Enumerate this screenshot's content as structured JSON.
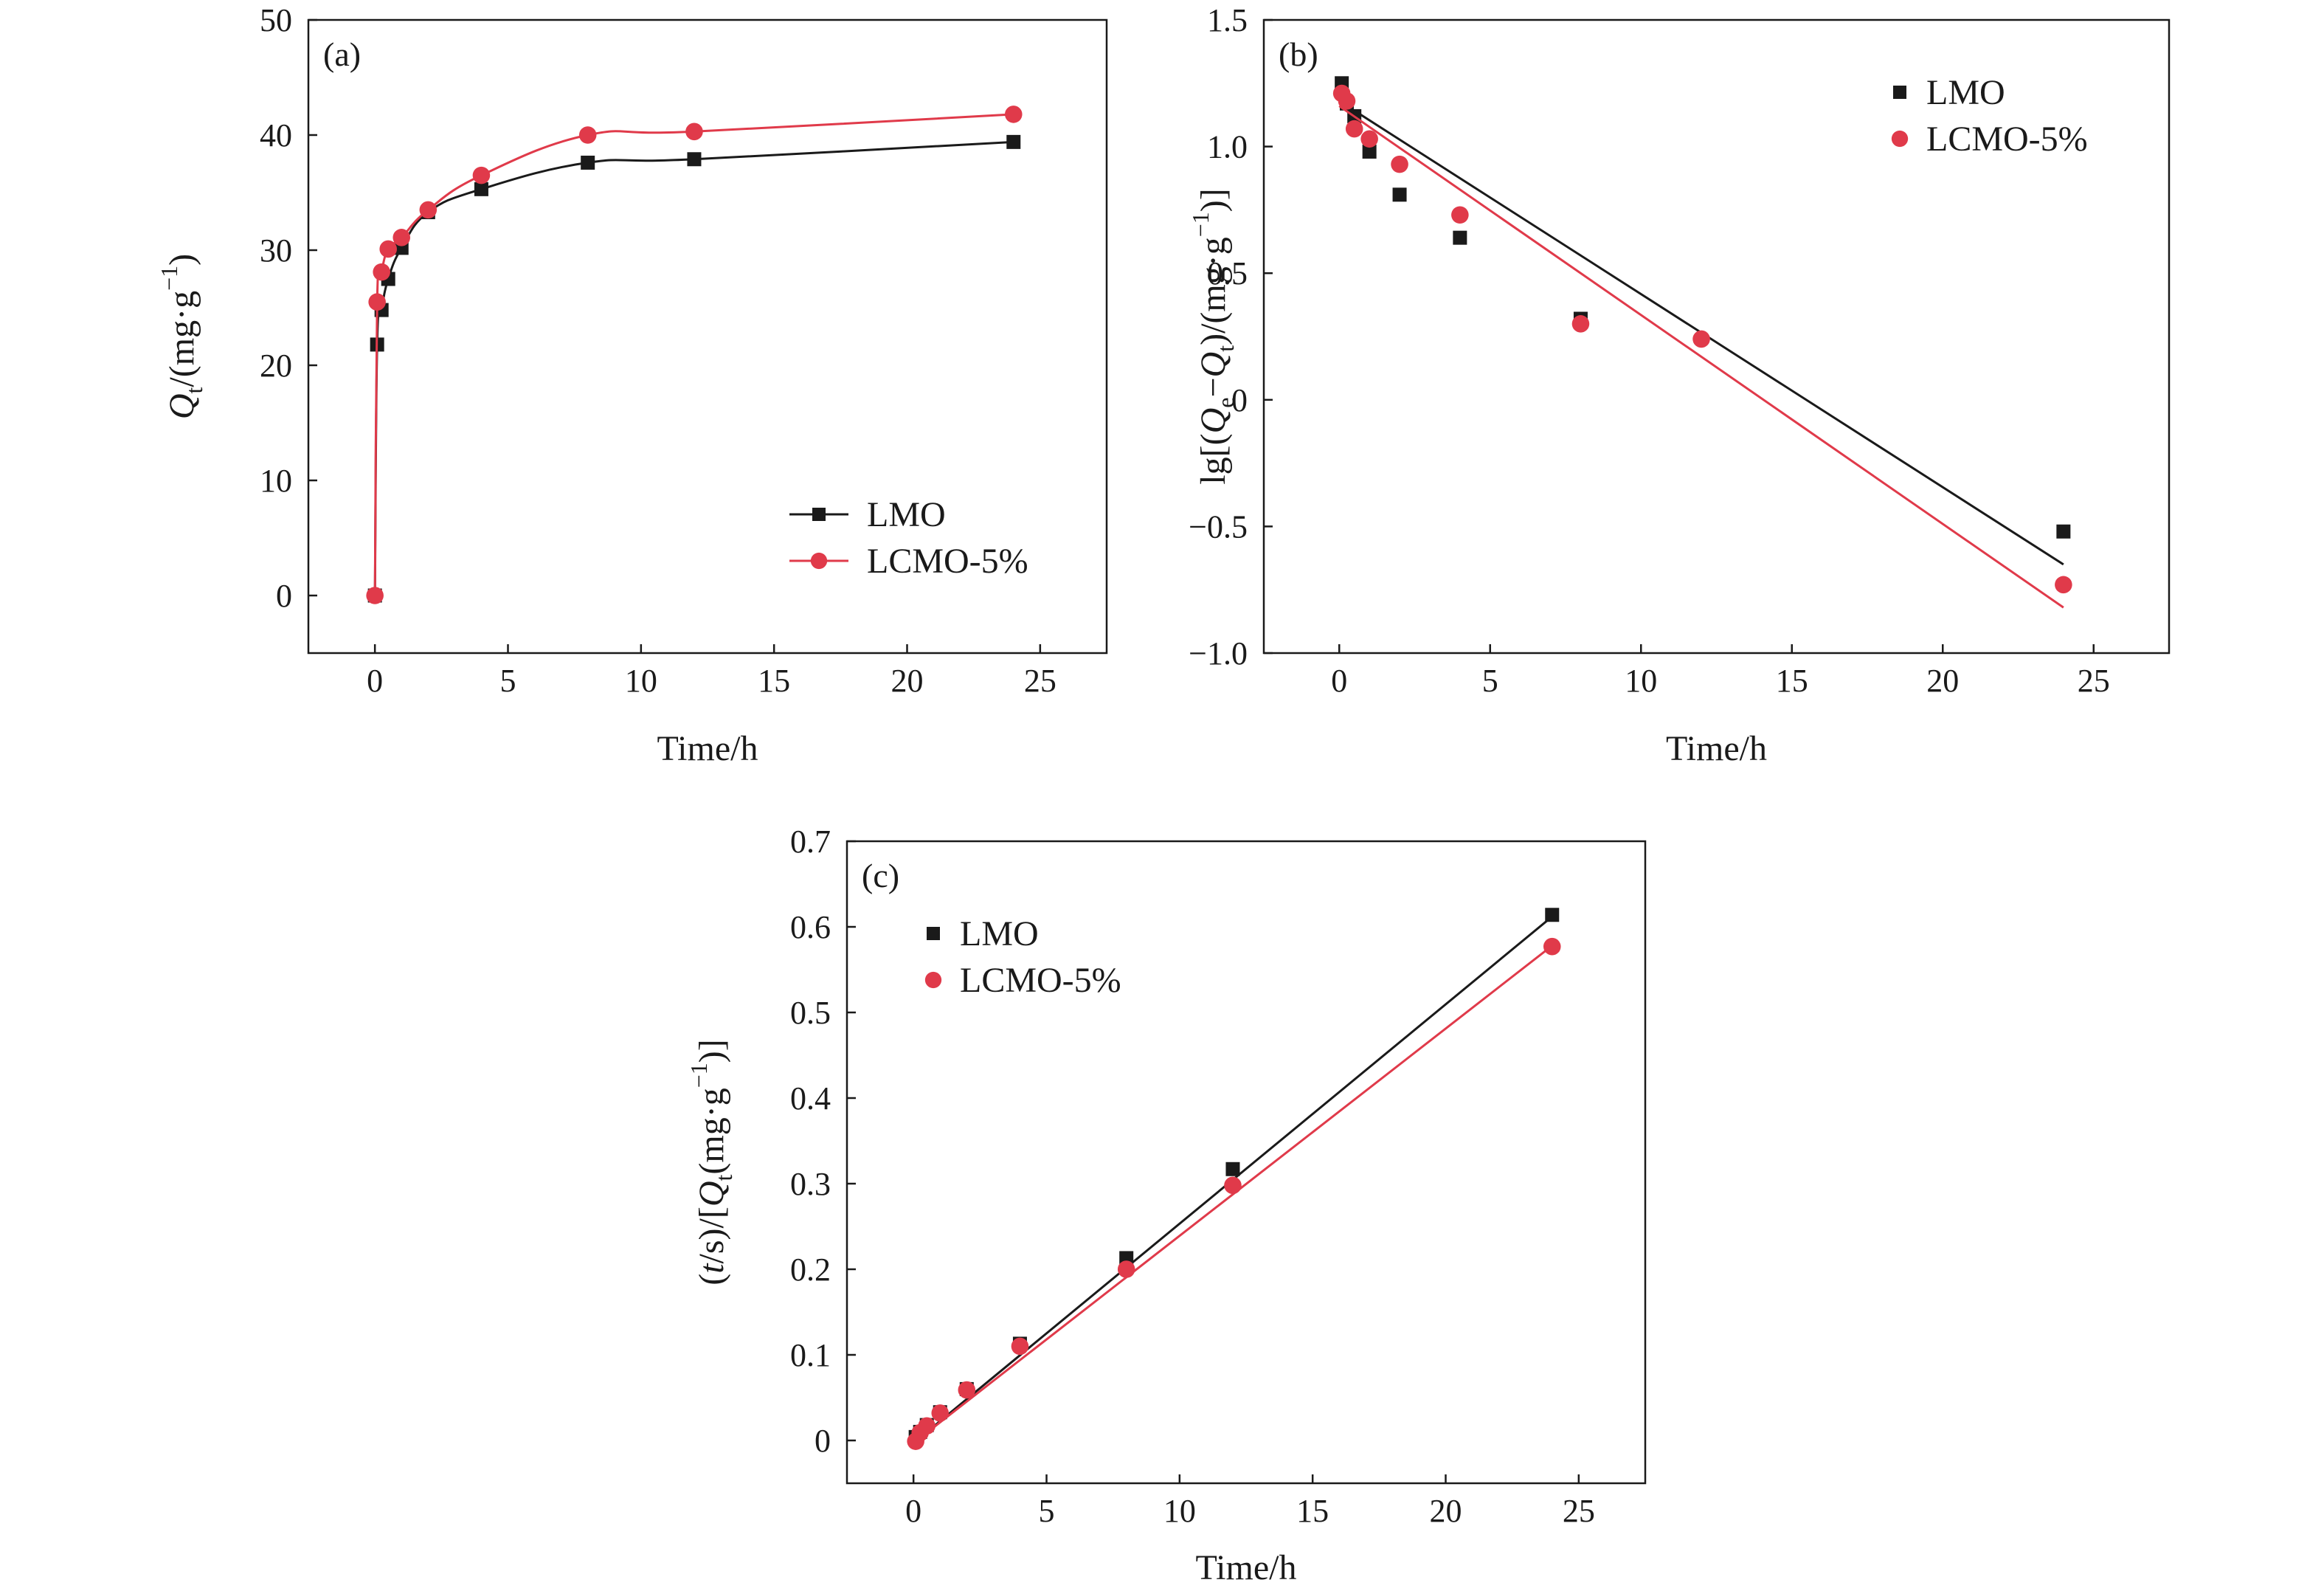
{
  "colors": {
    "LMO": "#1a1a1a",
    "LCMO-5%": "#e03a4a",
    "axis": "#1a1a1a"
  },
  "chart_data": [
    {
      "panel": "(a)",
      "type": "line",
      "xlabel": "Time/h",
      "ylabel": {
        "sym": "Q",
        "sub": "t",
        "unit": "/(mg·g",
        "exp": "−1",
        "close": ")"
      },
      "xlim": [
        -2.5,
        27.5
      ],
      "ylim": [
        -5,
        50
      ],
      "xticks": [
        0,
        5,
        10,
        15,
        20,
        25
      ],
      "yticks": [
        0,
        10,
        20,
        30,
        40,
        50
      ],
      "legend_position": "bottom-right",
      "series": [
        {
          "name": "LMO",
          "marker": "square",
          "x": [
            0,
            0.083,
            0.25,
            0.5,
            1,
            2,
            4,
            8,
            12,
            24
          ],
          "y": [
            0,
            21.8,
            24.8,
            27.5,
            30.2,
            33.3,
            35.3,
            37.6,
            37.9,
            39.4
          ],
          "curve": true
        },
        {
          "name": "LCMO-5%",
          "marker": "circle",
          "x": [
            0,
            0.083,
            0.25,
            0.5,
            1,
            2,
            4,
            8,
            12,
            24
          ],
          "y": [
            0,
            25.5,
            28.1,
            30.1,
            31.1,
            33.5,
            36.5,
            40.0,
            40.3,
            41.8
          ],
          "curve": true
        }
      ]
    },
    {
      "panel": "(b)",
      "type": "scatter",
      "xlabel": "Time/h",
      "ylabel": {
        "pre": "lg[(",
        "sym1": "Q",
        "sub1": "e",
        "mid": "−",
        "sym2": "Q",
        "sub2": "t",
        "unit": ")/(mg·g",
        "exp": "−1",
        "close": ")]"
      },
      "xlim": [
        -2.5,
        27.5
      ],
      "ylim": [
        -1.0,
        1.5
      ],
      "xticks": [
        0,
        5,
        10,
        15,
        20,
        25
      ],
      "yticks": [
        -1.0,
        -0.5,
        0,
        0.5,
        1.0,
        1.5
      ],
      "ytick_labels": [
        "−1.0",
        "−0.5",
        "0",
        "0.5",
        "1.0",
        "1.5"
      ],
      "legend_position": "top-right",
      "series": [
        {
          "name": "LMO",
          "marker": "square",
          "x": [
            0.083,
            0.25,
            0.5,
            1,
            2,
            4,
            8,
            24
          ],
          "y": [
            1.25,
            1.17,
            1.12,
            0.98,
            0.81,
            0.64,
            0.32,
            -0.52
          ],
          "fit": {
            "x": [
              0,
              24
            ],
            "y": [
              1.18,
              -0.65
            ]
          }
        },
        {
          "name": "LCMO-5%",
          "marker": "circle",
          "x": [
            0.083,
            0.25,
            0.5,
            1,
            2,
            4,
            8,
            12,
            24
          ],
          "y": [
            1.21,
            1.18,
            1.07,
            1.03,
            0.93,
            0.73,
            0.3,
            0.24,
            -0.73
          ],
          "fit": {
            "x": [
              0,
              24
            ],
            "y": [
              1.16,
              -0.82
            ]
          }
        }
      ]
    },
    {
      "panel": "(c)",
      "type": "scatter",
      "xlabel": "Time/h",
      "ylabel": {
        "pre": "(",
        "sym1": "t",
        "mid": "/s)/[",
        "sym2": "Q",
        "sub2": "t",
        "unit": "(mg·g",
        "exp": "−1",
        "close": ")]"
      },
      "xlim": [
        -2.5,
        27.5
      ],
      "ylim": [
        -0.05,
        0.7
      ],
      "xticks": [
        0,
        5,
        10,
        15,
        20,
        25
      ],
      "yticks": [
        0,
        0.1,
        0.2,
        0.3,
        0.4,
        0.5,
        0.6,
        0.7
      ],
      "legend_position": "top-left",
      "series": [
        {
          "name": "LMO",
          "marker": "square",
          "x": [
            0.083,
            0.25,
            0.5,
            1,
            2,
            4,
            8,
            12,
            24
          ],
          "y": [
            0.004,
            0.01,
            0.018,
            0.033,
            0.06,
            0.113,
            0.213,
            0.317,
            0.614
          ],
          "fit": {
            "x": [
              0,
              24
            ],
            "y": [
              -0.003,
              0.612
            ]
          }
        },
        {
          "name": "LCMO-5%",
          "marker": "circle",
          "x": [
            0.083,
            0.25,
            0.5,
            1,
            2,
            4,
            8,
            12,
            24
          ],
          "y": [
            -0.001,
            0.009,
            0.017,
            0.032,
            0.059,
            0.11,
            0.2,
            0.298,
            0.577
          ],
          "fit": {
            "x": [
              0,
              24
            ],
            "y": [
              -0.003,
              0.578
            ]
          }
        }
      ]
    }
  ]
}
